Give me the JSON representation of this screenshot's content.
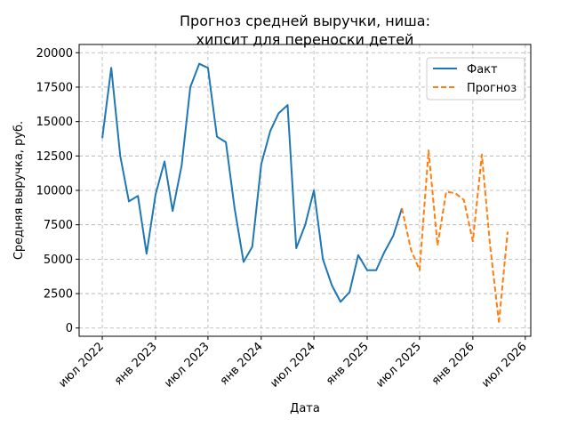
{
  "chart_data": {
    "type": "line",
    "title": "Прогноз средней выручки, ниша:\nхипсит для переноски детей",
    "title_lines": [
      "Прогноз средней выручки, ниша:",
      "хипсит для переноски детей"
    ],
    "xlabel": "Дата",
    "ylabel": "Средняя выручка, руб.",
    "ylim": [
      -600,
      20600
    ],
    "y_ticks": [
      0,
      2500,
      5000,
      7500,
      10000,
      12500,
      15000,
      17500,
      20000
    ],
    "y_tick_labels": [
      "0",
      "2500",
      "5000",
      "7500",
      "10000",
      "12500",
      "15000",
      "17500",
      "20000"
    ],
    "xlim": [
      "2022-04-12",
      "2026-07-20"
    ],
    "x_ticks": [
      "2022-07-01",
      "2023-01-01",
      "2023-07-01",
      "2024-01-01",
      "2024-07-01",
      "2025-01-01",
      "2025-07-01",
      "2026-01-01",
      "2026-07-01"
    ],
    "x_tick_labels": [
      "июл 2022",
      "янв 2023",
      "июл 2023",
      "янв 2024",
      "июл 2024",
      "янв 2025",
      "июл 2025",
      "янв 2026",
      "июл 2026"
    ],
    "grid": true,
    "legend_position": "top-right",
    "series": [
      {
        "name": "Факт",
        "color": "#1f77b4",
        "style": "solid",
        "x": [
          "2022-07-01",
          "2022-08-01",
          "2022-09-01",
          "2022-10-01",
          "2022-11-01",
          "2022-12-01",
          "2023-01-01",
          "2023-02-01",
          "2023-03-01",
          "2023-04-01",
          "2023-05-01",
          "2023-06-01",
          "2023-07-01",
          "2023-08-01",
          "2023-09-01",
          "2023-10-01",
          "2023-11-01",
          "2023-12-01",
          "2024-01-01",
          "2024-02-01",
          "2024-03-01",
          "2024-04-01",
          "2024-05-01",
          "2024-06-01",
          "2024-07-01",
          "2024-08-01",
          "2024-09-01",
          "2024-10-01",
          "2024-11-01",
          "2024-12-01",
          "2025-01-01",
          "2025-02-01",
          "2025-03-01",
          "2025-04-01",
          "2025-05-01"
        ],
        "values": [
          13800,
          18900,
          12500,
          9200,
          9600,
          5400,
          9700,
          12100,
          8500,
          11800,
          17500,
          19200,
          18900,
          13900,
          13500,
          8700,
          4800,
          5900,
          11900,
          14300,
          15600,
          16200,
          5800,
          7500,
          10000,
          5000,
          3100,
          1900,
          2600,
          5300,
          4200,
          4200,
          5500,
          6700,
          8700
        ]
      },
      {
        "name": "Прогноз",
        "color": "#ff7f0e",
        "style": "dashed",
        "x": [
          "2025-05-01",
          "2025-06-01",
          "2025-07-01",
          "2025-08-01",
          "2025-09-01",
          "2025-10-01",
          "2025-11-01",
          "2025-12-01",
          "2026-01-01",
          "2026-02-01",
          "2026-03-01",
          "2026-04-01"
        ],
        "values": [
          8700,
          5700,
          4200,
          12900,
          6000,
          9900,
          9800,
          9300,
          6300,
          12600,
          6100,
          400
        ]
      },
      {
        "name": "",
        "color": "#ff7f0e",
        "style": "dashed",
        "x": [
          "2026-04-01",
          "2026-05-01"
        ],
        "values": [
          400,
          7000
        ]
      }
    ]
  }
}
